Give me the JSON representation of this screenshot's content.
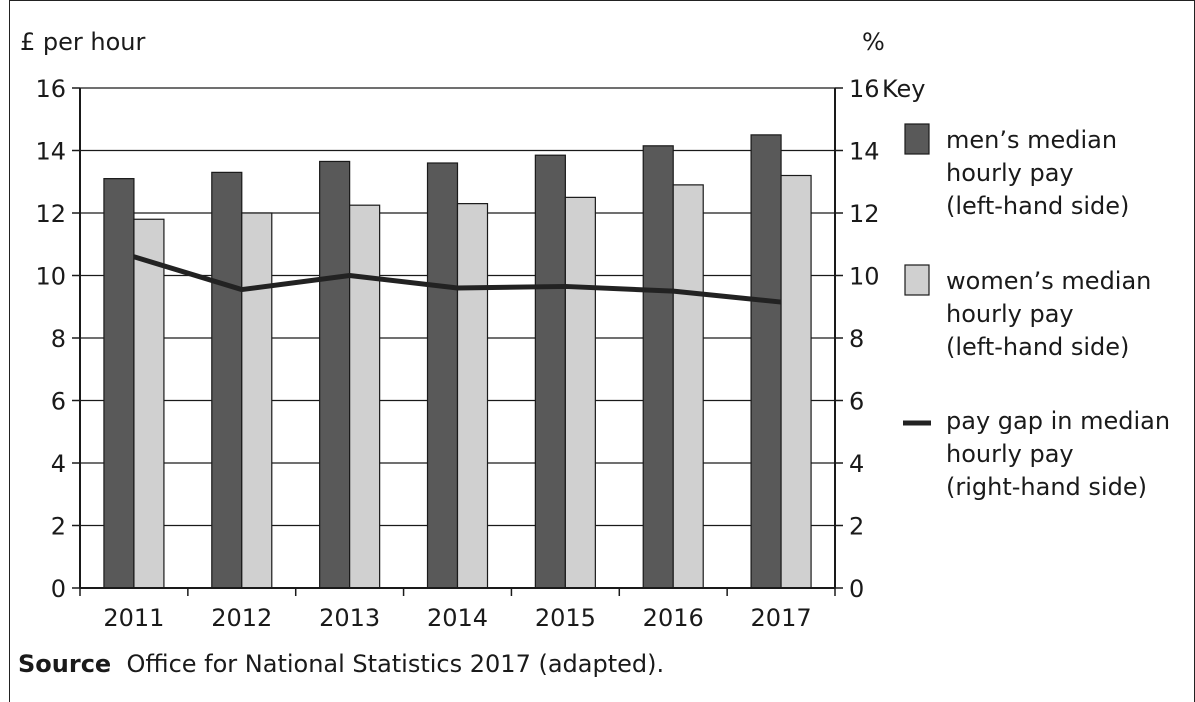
{
  "chart_data": {
    "type": "bar",
    "categories": [
      "2011",
      "2012",
      "2013",
      "2014",
      "2015",
      "2016",
      "2017"
    ],
    "series": [
      {
        "name": "men’s median hourly pay (left-hand side)",
        "kind": "bar",
        "axis": "left",
        "color": "#595959",
        "values": [
          13.1,
          13.3,
          13.65,
          13.6,
          13.85,
          14.15,
          14.5
        ]
      },
      {
        "name": "women’s median hourly pay (left-hand side)",
        "kind": "bar",
        "axis": "left",
        "color": "#d0d0d0",
        "values": [
          11.8,
          12.0,
          12.25,
          12.3,
          12.5,
          12.9,
          13.2
        ]
      },
      {
        "name": "pay gap in median hourly pay (right-hand side)",
        "kind": "line",
        "axis": "right",
        "color": "#222222",
        "values": [
          10.6,
          9.55,
          10.0,
          9.6,
          9.65,
          9.5,
          9.15
        ]
      }
    ],
    "ylabel_left": "£ per hour",
    "ylabel_right": "%",
    "ylim": [
      0,
      16
    ],
    "yticks": [
      0,
      2,
      4,
      6,
      8,
      10,
      12,
      14,
      16
    ],
    "grid": true,
    "legend": {
      "title": "Key",
      "position": "right",
      "items": [
        {
          "lines": [
            "men’s median",
            "hourly pay",
            "(left-hand side)"
          ]
        },
        {
          "lines": [
            "women’s median",
            "hourly pay",
            "(left-hand side)"
          ]
        },
        {
          "lines": [
            "pay gap in median",
            "hourly pay",
            "(right-hand side)"
          ]
        }
      ]
    }
  },
  "source": {
    "label": "Source",
    "text": "Office for National Statistics 2017 (adapted)."
  }
}
